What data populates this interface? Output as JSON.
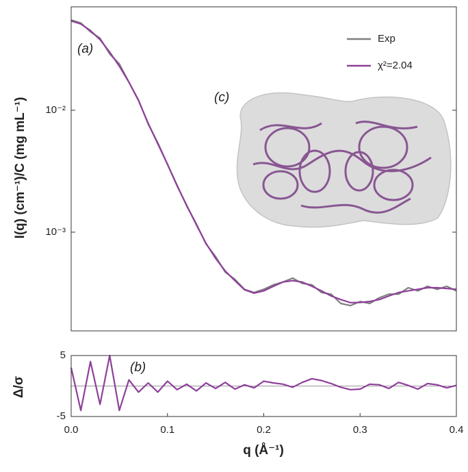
{
  "chart_data": [
    {
      "type": "line",
      "log_y": true,
      "y_label": "I(q) (cm⁻¹)/C (mg mL⁻¹)",
      "x": [
        0,
        0.01,
        0.02,
        0.03,
        0.04,
        0.05,
        0.06,
        0.07,
        0.08,
        0.09,
        0.1,
        0.11,
        0.12,
        0.13,
        0.14,
        0.15,
        0.16,
        0.17,
        0.18,
        0.19,
        0.2,
        0.21,
        0.22,
        0.23,
        0.24,
        0.25,
        0.26,
        0.27,
        0.28,
        0.29,
        0.3,
        0.31,
        0.32,
        0.33,
        0.34,
        0.35,
        0.36,
        0.37,
        0.38,
        0.39,
        0.4
      ],
      "series": [
        {
          "name": "Exp",
          "color": "#7f7f7f",
          "values": [
            0.055,
            0.052,
            0.044,
            0.039,
            0.029,
            0.024,
            0.017,
            0.0121,
            0.0077,
            0.0054,
            0.0036,
            0.00243,
            0.00164,
            0.00117,
            0.0008,
            0.00063,
            0.00047,
            0.00041,
            0.00034,
            0.00032,
            0.00034,
            0.00037,
            0.00039,
            0.00042,
            0.00038,
            0.00037,
            0.00032,
            0.00031,
            0.00026,
            0.00025,
            0.00027,
            0.00026,
            0.00029,
            0.00031,
            0.00031,
            0.00035,
            0.00033,
            0.00036,
            0.00034,
            0.00036,
            0.00033
          ]
        },
        {
          "name": "χ²=2.04",
          "color": "#8e3f9a",
          "values": [
            0.054,
            0.051,
            0.045,
            0.038,
            0.03,
            0.023,
            0.017,
            0.012,
            0.0078,
            0.0053,
            0.0036,
            0.0024,
            0.00166,
            0.00115,
            0.00081,
            0.00061,
            0.00048,
            0.0004,
            0.000337,
            0.000316,
            0.00033,
            0.00036,
            0.00039,
            0.0004,
            0.00039,
            0.00036,
            0.00033,
            0.0003,
            0.00028,
            0.000264,
            0.000265,
            0.00027,
            0.00028,
            0.0003,
            0.00032,
            0.00033,
            0.00034,
            0.00035,
            0.00035,
            0.000345,
            0.00034
          ]
        }
      ],
      "xlim": [
        0,
        0.4
      ],
      "ylim": [
        0.000155,
        0.0705
      ],
      "yticks": [
        {
          "value": 0.001,
          "label": "10⁻³"
        },
        {
          "value": 0.01,
          "label": "10⁻²"
        }
      ],
      "legend": "upper right",
      "annotations": [
        "(a)",
        "(c)"
      ]
    },
    {
      "type": "line",
      "y_label": "Δ/σ",
      "x_label": "q (Å⁻¹)",
      "x": [
        0,
        0.01,
        0.02,
        0.03,
        0.04,
        0.05,
        0.06,
        0.07,
        0.08,
        0.09,
        0.1,
        0.11,
        0.12,
        0.13,
        0.14,
        0.15,
        0.16,
        0.17,
        0.18,
        0.19,
        0.2,
        0.21,
        0.22,
        0.23,
        0.24,
        0.25,
        0.26,
        0.27,
        0.28,
        0.29,
        0.3,
        0.31,
        0.32,
        0.33,
        0.34,
        0.35,
        0.36,
        0.37,
        0.38,
        0.39,
        0.4
      ],
      "series": [
        {
          "name": "Δ/σ",
          "color": "#8e3f9a",
          "values": [
            3,
            -4,
            4,
            -3,
            5,
            -4,
            1,
            -1,
            0.5,
            -1,
            0.8,
            -0.6,
            0.3,
            -0.8,
            0.5,
            -0.4,
            0.6,
            -0.5,
            0.2,
            -0.3,
            0.8,
            0.5,
            0.3,
            -0.2,
            0.6,
            1.2,
            0.9,
            0.4,
            -0.2,
            -0.6,
            -0.5,
            0.3,
            0.2,
            -0.4,
            0.6,
            0.1,
            -0.5,
            0.4,
            0.2,
            -0.3,
            0.1
          ]
        }
      ],
      "xlim": [
        0,
        0.4
      ],
      "ylim": [
        -5,
        5
      ],
      "xticks": [
        {
          "value": 0,
          "label": "0.0"
        },
        0.1,
        0.2,
        0.3,
        0.4
      ],
      "yticks": [
        -5,
        5
      ],
      "annotations": [
        "(b)"
      ]
    }
  ]
}
